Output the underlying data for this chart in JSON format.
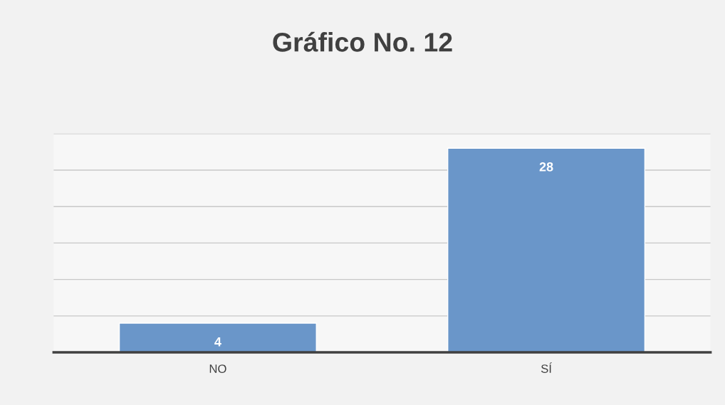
{
  "chart_data": {
    "type": "bar",
    "title": "Gráfico No. 12",
    "categories": [
      "NO",
      "SÍ"
    ],
    "values": [
      4,
      28
    ],
    "color": "#6a96c9",
    "ylim": [
      0,
      30
    ],
    "yticks": [
      {
        "value": 0,
        "label": null
      },
      {
        "value": 5,
        "label": null
      },
      {
        "value": 10,
        "label": null
      },
      {
        "value": 15,
        "label": null
      },
      {
        "value": 20,
        "label": null
      },
      {
        "value": 25,
        "label": null
      },
      {
        "value": 30,
        "label": null
      }
    ],
    "tick_labels": "x",
    "grid": "y",
    "data_labels": true
  }
}
